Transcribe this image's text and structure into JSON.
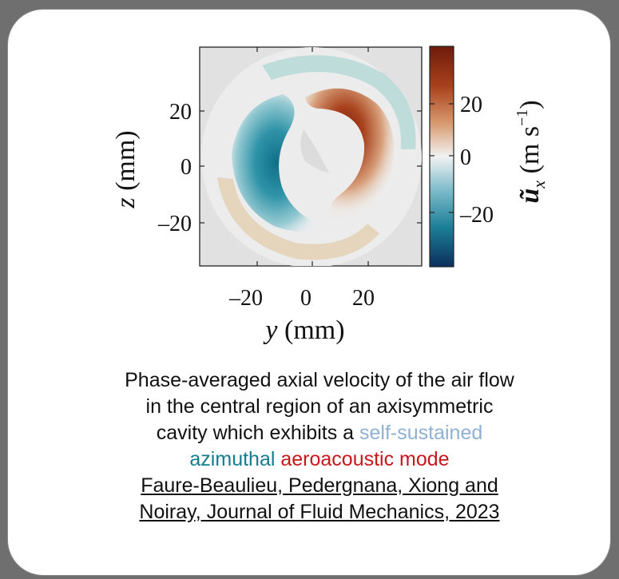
{
  "figure": {
    "y_axis_label": {
      "italic": "z",
      "unit": " (mm)"
    },
    "x_axis_label": {
      "italic": "y",
      "unit": " (mm)"
    },
    "y_ticks": [
      "20",
      "0",
      "–20"
    ],
    "x_ticks": [
      "–20",
      "0",
      "20"
    ],
    "colorbar_ticks": [
      "20",
      "0",
      "–20"
    ],
    "colorbar_label": "ũ",
    "colorbar_label_sub": "x",
    "colorbar_label_unit": "(m s",
    "colorbar_label_exp": "−1",
    "colorbar_label_close": ")",
    "colors": {
      "positive": "#8c2a12",
      "negative": "#0f4f7a",
      "zero": "#eeeeee",
      "background": "#e3e3e3"
    }
  },
  "caption": {
    "line1": "Phase-averaged axial velocity of the air flow",
    "line2": "in the central region of an axisymmetric",
    "line3_prefix": "cavity which exhibits a ",
    "line3_highlight": "self-sustained",
    "line4_a": "azimuthal",
    "line4_b": " aeroacoustic mode",
    "citation_line1": "Faure-Beaulieu, Pedergnana, Xiong and",
    "citation_line2": "Noiray, Journal of Fluid Mechanics, 2023"
  }
}
